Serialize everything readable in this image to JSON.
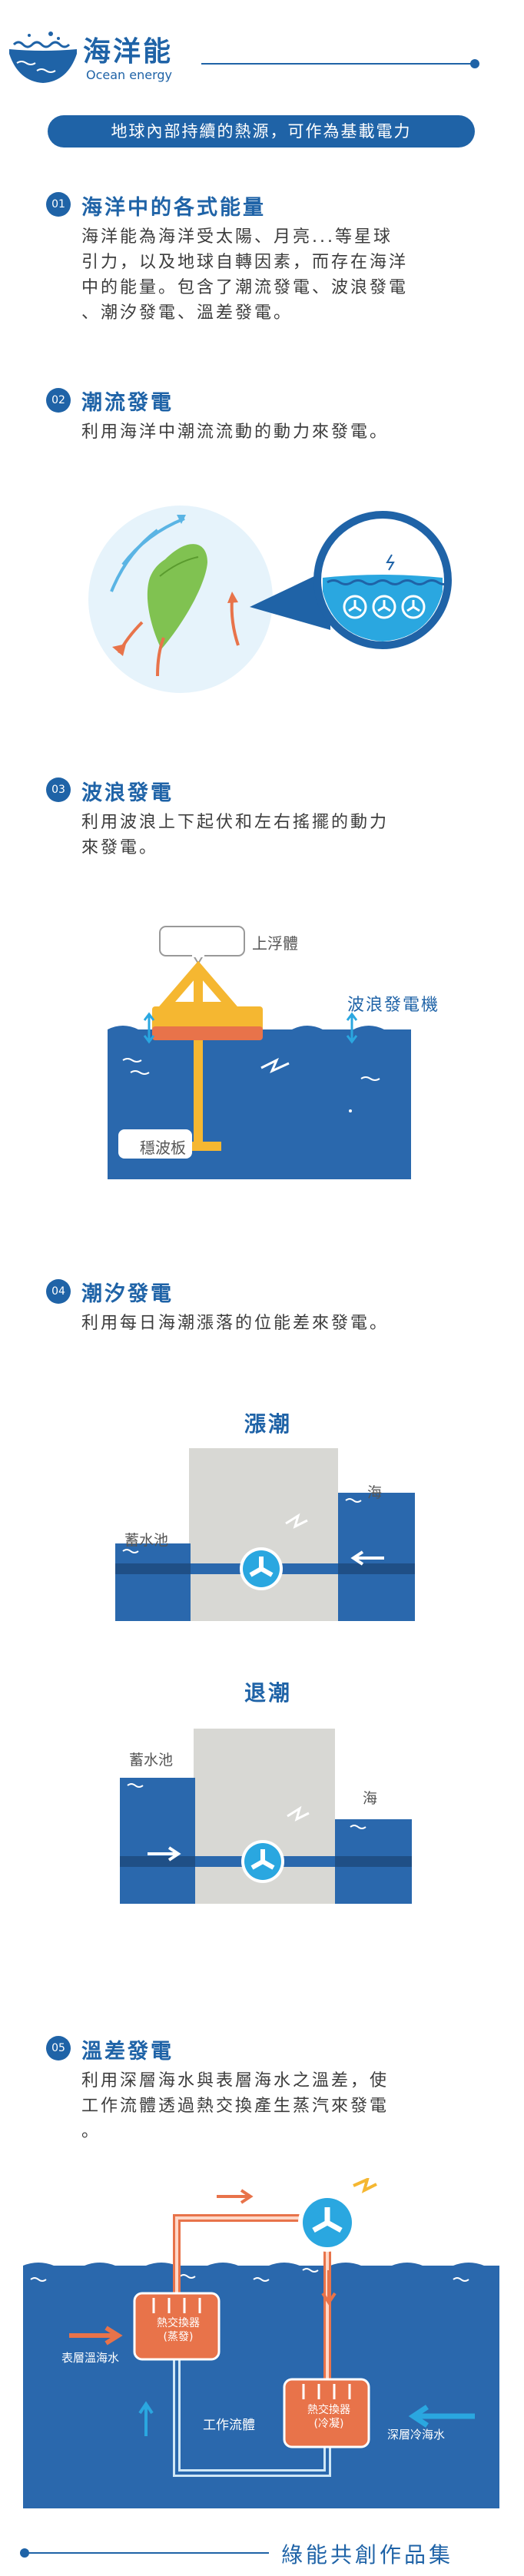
{
  "header": {
    "title": "海洋能",
    "subtitle": "Ocean energy",
    "banner": "地球內部持續的熱源，可作為基載電力"
  },
  "sections": [
    {
      "number": "01",
      "title": "海洋中的各式能量",
      "lines": [
        "海洋能為海洋受太陽、月亮...等星球",
        "引力，以及地球自轉因素，而存在海洋",
        "中的能量。包含了潮流發電、波浪發電",
        "、潮汐發電、溫差發電。"
      ]
    },
    {
      "number": "02",
      "title": "潮流發電",
      "lines": [
        "利用海洋中潮流流動的動力來發電。"
      ]
    },
    {
      "number": "03",
      "title": "波浪發電",
      "lines": [
        "利用波浪上下起伏和左右搖擺的動力",
        "來發電。"
      ],
      "diagram": {
        "float_label": "上浮體",
        "generator_label": "波浪發電機",
        "plate_label": "穩波板"
      }
    },
    {
      "number": "04",
      "title": "潮汐發電",
      "lines": [
        "利用每日海潮漲落的位能差來發電。"
      ],
      "diagram": {
        "high_tide": "漲潮",
        "low_tide": "退潮",
        "reservoir": "蓄水池",
        "sea": "海"
      }
    },
    {
      "number": "05",
      "title": "溫差發電",
      "lines": [
        "利用深層海水與表層海水之溫差，使",
        "工作流體透過熱交換產生蒸汽來發電",
        "。"
      ],
      "diagram": {
        "exchanger_evap_1": "熱交換器",
        "exchanger_evap_2": "(蒸發)",
        "exchanger_cond_1": "熱交換器",
        "exchanger_cond_2": "(冷凝)",
        "warm_water": "表層溫海水",
        "cold_water": "深層冷海水",
        "working_fluid": "工作流體"
      }
    }
  ],
  "footer": {
    "text": "綠能共創作品集"
  },
  "colors": {
    "primary": "#1f63a7",
    "sea": "#2a68ad",
    "arrow_warm": "#e8734a",
    "arrow_cool": "#2aa7e0",
    "yellow": "#f5b731"
  }
}
